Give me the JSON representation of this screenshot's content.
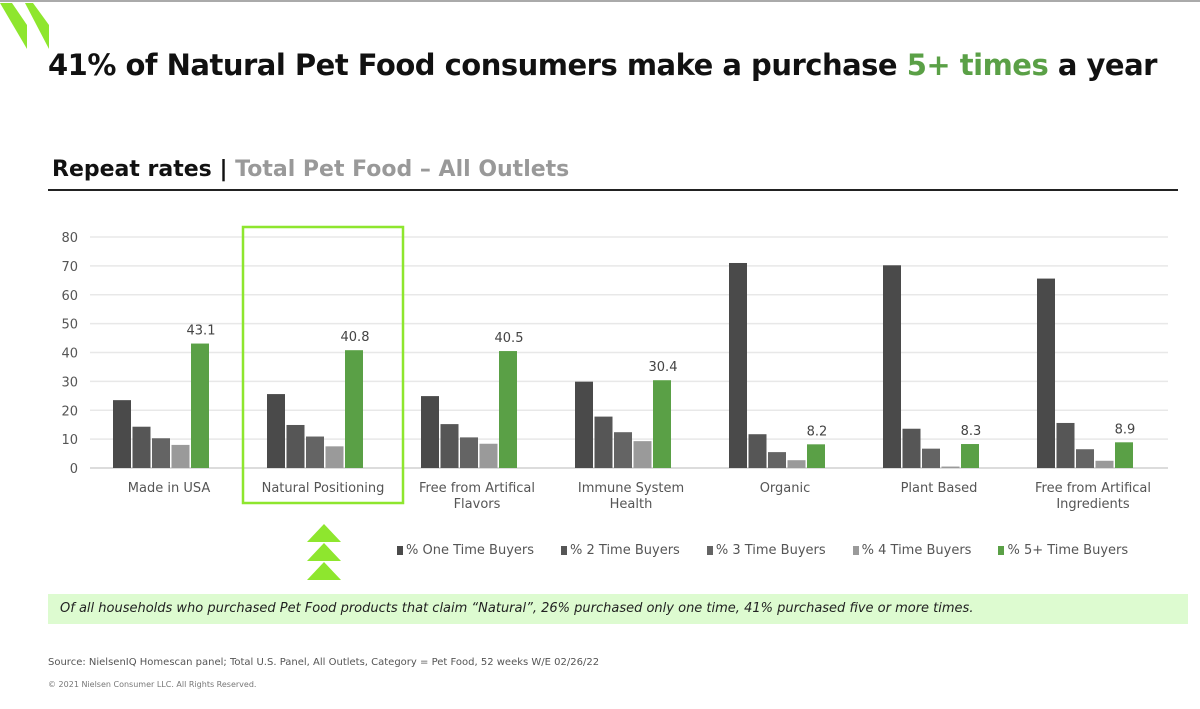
{
  "header": {
    "title_pre": "41% of Natural Pet Food consumers make a purchase ",
    "title_highlight": "5+ times",
    "title_post": " a year",
    "subtitle_main": "Repeat rates | ",
    "subtitle_grey": "Total Pet Food – All Outlets"
  },
  "colors": {
    "brand_green": "#8ee62e",
    "highlight_text": "#5aa046",
    "callout_bg": "#ddfbd0"
  },
  "chart_data": {
    "type": "bar",
    "categories": [
      "Made in USA",
      "Natural Positioning",
      "Free from Artifical Flavors",
      "Immune System Health",
      "Organic",
      "Plant Based",
      "Free from Artifical Ingredients"
    ],
    "category_lines": [
      [
        "Made in USA"
      ],
      [
        "Natural Positioning"
      ],
      [
        "Free from Artifical",
        "Flavors"
      ],
      [
        "Immune System",
        "Health"
      ],
      [
        "Organic"
      ],
      [
        "Plant Based"
      ],
      [
        "Free from Artifical",
        "Ingredients"
      ]
    ],
    "series": [
      {
        "name": "% One Time Buyers",
        "color": "#4a4a4a",
        "values": [
          23.5,
          25.6,
          24.9,
          29.9,
          71.0,
          70.2,
          65.6
        ]
      },
      {
        "name": "% 2 Time Buyers",
        "color": "#565656",
        "values": [
          14.3,
          14.9,
          15.2,
          17.8,
          11.7,
          13.6,
          15.6
        ]
      },
      {
        "name": "% 3 Time Buyers",
        "color": "#646464",
        "values": [
          10.3,
          10.9,
          10.6,
          12.4,
          5.5,
          6.7,
          6.5
        ]
      },
      {
        "name": "% 4 Time Buyers",
        "color": "#9a9a9a",
        "values": [
          8.0,
          7.5,
          8.4,
          9.3,
          2.7,
          0.5,
          2.5
        ]
      },
      {
        "name": "% 5+ Time Buyers",
        "color": "#5aa046",
        "values": [
          43.1,
          40.8,
          40.5,
          30.4,
          8.2,
          8.3,
          8.9
        ],
        "data_labels": [
          "43.1",
          "40.8",
          "40.5",
          "30.4",
          "8.2",
          "8.3",
          "8.9"
        ]
      }
    ],
    "yticks": [
      "0",
      "10",
      "20",
      "30",
      "40",
      "50",
      "60",
      "70",
      "80"
    ],
    "ylim": [
      0,
      80
    ],
    "grid": true,
    "legend_position": "bottom-right",
    "highlighted_category": "Natural Positioning"
  },
  "callout": "Of all households who purchased Pet Food products that claim “Natural”, 26% purchased only one time, 41% purchased five or more times.",
  "footer": {
    "source": "Source: NielsenIQ Homescan panel; Total U.S. Panel, All Outlets, Category = Pet Food, 52 weeks W/E 02/26/22",
    "copyright": "© 2021 Nielsen Consumer LLC. All Rights Reserved."
  }
}
